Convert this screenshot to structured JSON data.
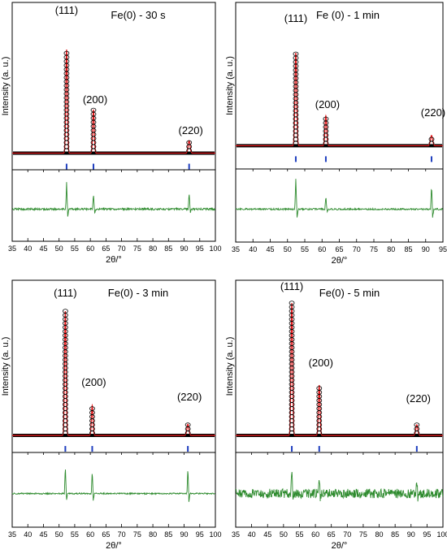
{
  "figure": {
    "ylabel": "Intensity (a. u.)",
    "xlabel": "2θ/°",
    "peak_labels": [
      "(111)",
      "(200)",
      "(220)"
    ],
    "colors": {
      "observed_marker": "#000000",
      "calculated_line": "#e31a1c",
      "bragg_tick": "#1f3fbf",
      "difference": "#2e8b2e",
      "axis": "#000000"
    }
  },
  "chart_data": [
    {
      "type": "line",
      "title": "Fe(0) - 30 s",
      "xlim": [
        35,
        100
      ],
      "x_ticks": [
        35,
        40,
        45,
        50,
        55,
        60,
        65,
        70,
        75,
        80,
        85,
        90,
        95,
        100
      ],
      "series": [],
      "peaks": [
        {
          "label": "(111)",
          "two_theta": 52.4,
          "relative_intensity": 1.0
        },
        {
          "label": "(200)",
          "two_theta": 61.0,
          "relative_intensity": 0.42
        },
        {
          "label": "(220)",
          "two_theta": 91.6,
          "relative_intensity": 0.12
        }
      ],
      "difference_spikes": [
        {
          "two_theta": 52.4,
          "amplitude": 0.9
        },
        {
          "two_theta": 61.0,
          "amplitude": 0.55
        },
        {
          "two_theta": 91.6,
          "amplitude": 0.6
        }
      ],
      "noise_level": 0.06
    },
    {
      "type": "line",
      "title": "Fe (0) - 1 min",
      "xlim": [
        35,
        95
      ],
      "x_ticks": [
        35,
        40,
        45,
        50,
        55,
        60,
        65,
        70,
        75,
        80,
        85,
        90,
        95
      ],
      "series": [],
      "peaks": [
        {
          "label": "(111)",
          "two_theta": 52.4,
          "relative_intensity": 1.0
        },
        {
          "label": "(200)",
          "two_theta": 61.1,
          "relative_intensity": 0.32
        },
        {
          "label": "(220)",
          "two_theta": 91.7,
          "relative_intensity": 0.11
        }
      ],
      "difference_spikes": [
        {
          "two_theta": 52.4,
          "amplitude": 1.0
        },
        {
          "two_theta": 61.1,
          "amplitude": 0.45
        },
        {
          "two_theta": 91.7,
          "amplitude": 0.8
        }
      ],
      "noise_level": 0.05
    },
    {
      "type": "line",
      "title": "Fe(0) - 3 min",
      "xlim": [
        35,
        100
      ],
      "x_ticks": [
        35,
        40,
        45,
        50,
        55,
        60,
        65,
        70,
        75,
        80,
        85,
        90,
        95,
        100
      ],
      "series": [],
      "peaks": [
        {
          "label": "(111)",
          "two_theta": 52.0,
          "relative_intensity": 1.0
        },
        {
          "label": "(200)",
          "two_theta": 60.6,
          "relative_intensity": 0.24
        },
        {
          "label": "(220)",
          "two_theta": 91.2,
          "relative_intensity": 0.09
        }
      ],
      "difference_spikes": [
        {
          "two_theta": 52.0,
          "amplitude": 0.9
        },
        {
          "two_theta": 60.6,
          "amplitude": 0.75
        },
        {
          "two_theta": 91.2,
          "amplitude": 0.85
        }
      ],
      "noise_level": 0.04
    },
    {
      "type": "line",
      "title": "Fe(0) - 5 min",
      "xlim": [
        35,
        100
      ],
      "x_ticks": [
        35,
        40,
        45,
        50,
        55,
        60,
        65,
        70,
        75,
        80,
        85,
        90,
        95,
        100
      ],
      "series": [],
      "peaks": [
        {
          "label": "(111)",
          "two_theta": 52.6,
          "relative_intensity": 1.0
        },
        {
          "label": "(200)",
          "two_theta": 61.2,
          "relative_intensity": 0.38
        },
        {
          "label": "(220)",
          "two_theta": 91.8,
          "relative_intensity": 0.08
        }
      ],
      "difference_spikes": [
        {
          "two_theta": 52.6,
          "amplitude": 0.9
        },
        {
          "two_theta": 61.2,
          "amplitude": 0.55
        },
        {
          "two_theta": 91.8,
          "amplitude": 0.45
        }
      ],
      "noise_level": 0.28
    }
  ]
}
